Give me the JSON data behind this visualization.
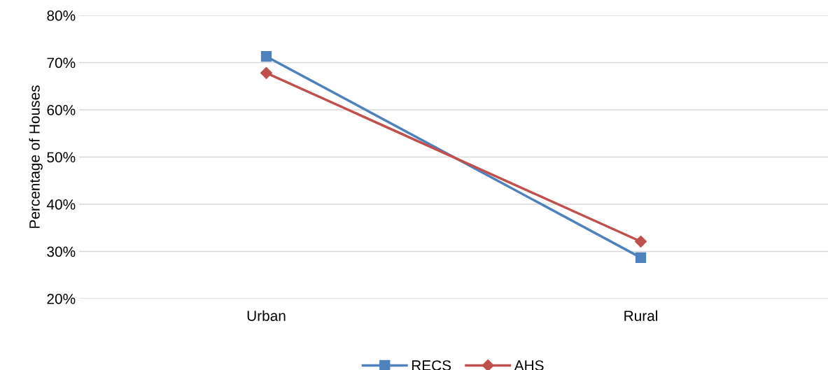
{
  "chart_data": {
    "type": "line",
    "ylabel": "Percentage of Houses",
    "categories": [
      "Urban",
      "Rural"
    ],
    "series": [
      {
        "name": "RECS",
        "color": "#4f81bd",
        "marker": "square",
        "values": [
          71.3,
          28.7
        ]
      },
      {
        "name": "AHS",
        "color": "#c0504d",
        "marker": "diamond",
        "values": [
          67.8,
          32.1
        ]
      }
    ],
    "ylim": [
      20,
      80
    ],
    "yticks": [
      {
        "value": 20,
        "label": "20%"
      },
      {
        "value": 30,
        "label": "30%"
      },
      {
        "value": 40,
        "label": "40%"
      },
      {
        "value": 50,
        "label": "50%"
      },
      {
        "value": 60,
        "label": "60%"
      },
      {
        "value": 70,
        "label": "70%"
      },
      {
        "value": 80,
        "label": "80%"
      }
    ],
    "grid": "y",
    "legend": "bottom",
    "line_style": "solid"
  }
}
